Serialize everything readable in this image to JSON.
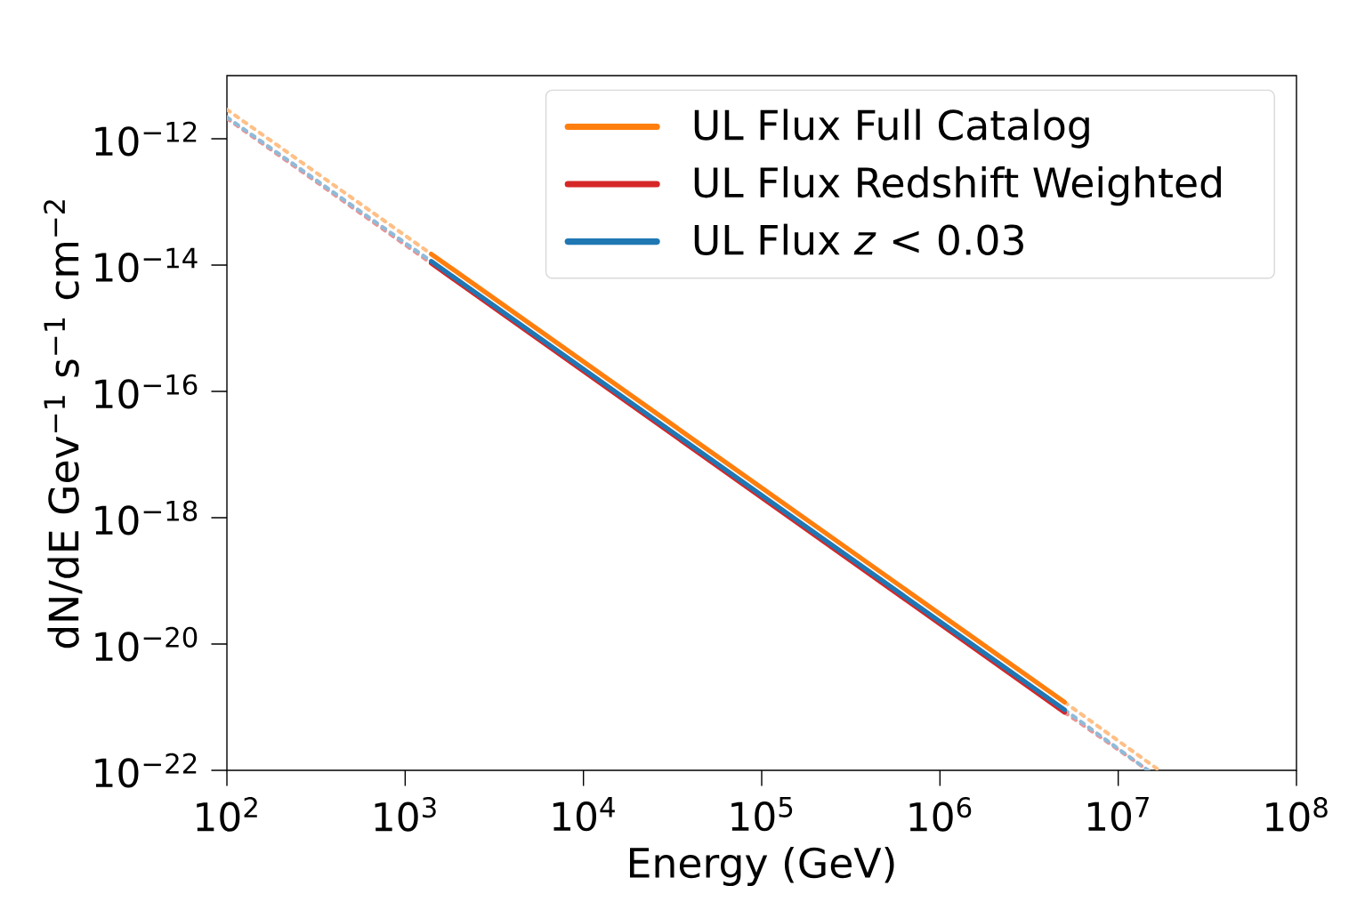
{
  "chart_data": {
    "type": "line",
    "xlabel": "Energy (GeV)",
    "ylabel": "dN/dE Gev$^{−1}$ s$^{−1}$ cm$^{−2}$",
    "log": "xy",
    "legend": "top right",
    "marker": "none",
    "xlim": [
      100,
      100000000
    ],
    "ylim": [
      1e-22,
      1e-11
    ],
    "xticks": [
      {
        "value": 100,
        "label": "10$^{2}$"
      },
      {
        "value": 1000,
        "label": "10$^{3}$"
      },
      {
        "value": 10000,
        "label": "10$^{4}$"
      },
      {
        "value": 100000,
        "label": "10$^{5}$"
      },
      {
        "value": 1000000,
        "label": "10$^{6}$"
      },
      {
        "value": 10000000,
        "label": "10$^{7}$"
      },
      {
        "value": 100000000,
        "label": "10$^{8}$"
      }
    ],
    "yticks": [
      {
        "value": 1e-22,
        "label": "10$^{−22}$"
      },
      {
        "value": 1e-20,
        "label": "10$^{−20}$"
      },
      {
        "value": 1e-18,
        "label": "10$^{−18}$"
      },
      {
        "value": 1e-16,
        "label": "10$^{−16}$"
      },
      {
        "value": 1e-14,
        "label": "10$^{−14}$"
      },
      {
        "value": 1e-12,
        "label": "10$^{−12}$"
      }
    ],
    "series": [
      {
        "color": "#ffbf86",
        "line_style": "dotted",
        "x": [
          100,
          1400,
          5000000,
          17000000
        ],
        "values": [
          2.9e-12,
          1.5e-14,
          1.2e-21,
          1e-22
        ]
      },
      {
        "color": "#eb9393",
        "line_style": "dotted",
        "x": [
          100,
          1400,
          5000000,
          14700000
        ],
        "values": [
          2.1e-12,
          1.07e-14,
          8.3e-22,
          1e-22
        ]
      },
      {
        "color": "#8fbbd9",
        "line_style": "dotted",
        "x": [
          100,
          1400,
          5000000,
          14700000
        ],
        "values": [
          2.2e-12,
          1.15e-14,
          9.1e-22,
          1e-22
        ]
      },
      {
        "name": "UL Flux Full Catalog",
        "color": "#ff7f0e",
        "line_style": "solid",
        "x": [
          1400,
          5000000
        ],
        "values": [
          1.5e-14,
          1.2e-21
        ]
      },
      {
        "name": "UL Flux Redshift Weighted",
        "color": "#d62728",
        "line_style": "solid",
        "x": [
          1400,
          5000000
        ],
        "values": [
          1.07e-14,
          8.3e-22
        ]
      },
      {
        "name": "UL Flux *z* < 0.03",
        "color": "#1f77b4",
        "line_style": "solid",
        "x": [
          1400,
          5000000
        ],
        "values": [
          1.15e-14,
          9.1e-22
        ]
      }
    ]
  }
}
